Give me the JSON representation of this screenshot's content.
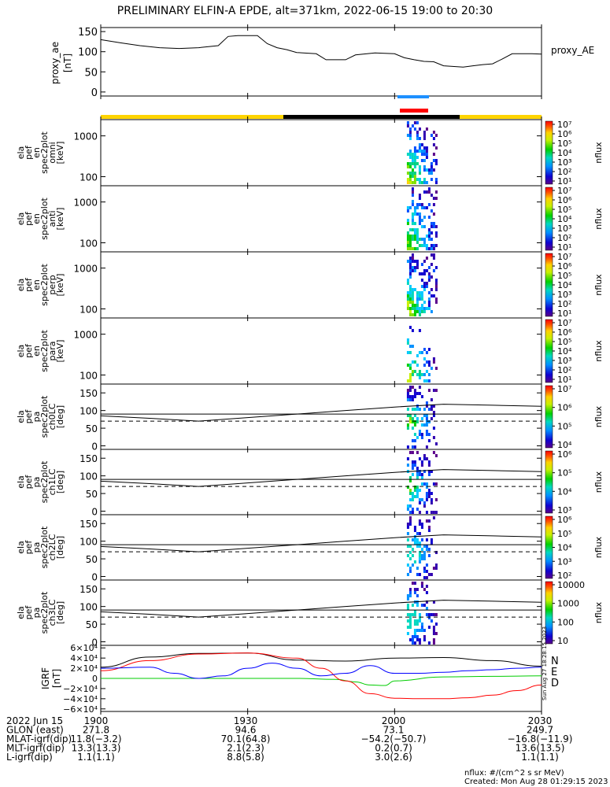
{
  "title": "PRELIMINARY ELFIN-A EPDE, alt=371km, 2022-06-15 19:00 to 20:30",
  "chart_data": [
    {
      "type": "line",
      "panel": "proxy_ae",
      "ylabel": [
        "proxy_ae",
        "[nT]"
      ],
      "legend": "proxy_AE",
      "ylim": [
        -10,
        160
      ],
      "yticks": [
        "150",
        "100",
        "50",
        "0"
      ],
      "x_minutes": [
        0,
        4,
        8,
        12,
        16,
        20,
        24,
        26,
        28,
        32,
        34,
        36,
        38,
        40,
        44,
        46,
        48,
        50,
        52,
        56,
        60,
        62,
        64,
        66,
        68,
        70,
        74,
        76,
        78,
        80,
        82,
        84,
        88,
        90
      ],
      "y": [
        130,
        122,
        115,
        110,
        108,
        110,
        115,
        138,
        140,
        140,
        120,
        110,
        105,
        98,
        95,
        80,
        80,
        80,
        92,
        97,
        95,
        85,
        80,
        76,
        75,
        65,
        62,
        65,
        68,
        70,
        82,
        95,
        95,
        94
      ]
    },
    {
      "type": "heatmap",
      "panel": "omni",
      "ylabel": [
        "ela",
        "pef",
        "en",
        "spec2plot",
        "omni",
        "[keV]"
      ],
      "yticks": [
        "1000",
        "100"
      ],
      "colorbar": {
        "label": "nflux",
        "ticks": [
          "10⁷",
          "10⁶",
          "10⁵",
          "10⁴",
          "10³",
          "10²",
          "10¹"
        ]
      }
    },
    {
      "type": "heatmap",
      "panel": "anti",
      "ylabel": [
        "ela",
        "pef",
        "en",
        "spec2plot",
        "anti",
        "[keV]"
      ],
      "yticks": [
        "1000",
        "100"
      ],
      "colorbar": {
        "label": "nflux",
        "ticks": [
          "10⁷",
          "10⁶",
          "10⁵",
          "10⁴",
          "10³",
          "10²",
          "10¹"
        ]
      }
    },
    {
      "type": "heatmap",
      "panel": "perp",
      "ylabel": [
        "ela",
        "pef",
        "en",
        "spec2plot",
        "perp",
        "[keV]"
      ],
      "yticks": [
        "1000",
        "100"
      ],
      "colorbar": {
        "label": "nflux",
        "ticks": [
          "10⁷",
          "10⁶",
          "10⁵",
          "10⁴",
          "10³",
          "10²",
          "10¹"
        ]
      }
    },
    {
      "type": "heatmap",
      "panel": "para",
      "ylabel": [
        "ela",
        "pef",
        "en",
        "spec2plot",
        "para",
        "[keV]"
      ],
      "yticks": [
        "1000",
        "100"
      ],
      "colorbar": {
        "label": "nflux",
        "ticks": [
          "10⁷",
          "10⁶",
          "10⁵",
          "10⁴",
          "10³",
          "10²",
          "10¹"
        ]
      }
    },
    {
      "type": "heatmap",
      "panel": "ch0LC",
      "ylabel": [
        "ela",
        "pef",
        "pa",
        "spec2plot",
        "ch0LC",
        "[deg]"
      ],
      "yticks": [
        "150",
        "100",
        "50",
        "0"
      ],
      "colorbar": {
        "label": "nflux",
        "ticks": [
          "10⁷",
          "10⁶",
          "10⁵",
          "10⁴"
        ]
      }
    },
    {
      "type": "heatmap",
      "panel": "ch1LC",
      "ylabel": [
        "ela",
        "pef",
        "pa",
        "spec2plot",
        "ch1LC",
        "[deg]"
      ],
      "yticks": [
        "150",
        "100",
        "50",
        "0"
      ],
      "colorbar": {
        "label": "nflux",
        "ticks": [
          "10⁶",
          "10⁵",
          "10⁴",
          "10³"
        ]
      }
    },
    {
      "type": "heatmap",
      "panel": "ch2LC",
      "ylabel": [
        "ela",
        "pef",
        "pa",
        "spec2plot",
        "ch2LC",
        "[deg]"
      ],
      "yticks": [
        "150",
        "100",
        "50",
        "0"
      ],
      "colorbar": {
        "label": "nflux",
        "ticks": [
          "10⁶",
          "10⁵",
          "10⁴",
          "10³",
          "10²"
        ]
      }
    },
    {
      "type": "heatmap",
      "panel": "ch3LC",
      "ylabel": [
        "ela",
        "pef",
        "pa",
        "spec2plot",
        "ch3LC",
        "[deg]"
      ],
      "yticks": [
        "150",
        "100",
        "50",
        "0"
      ],
      "colorbar": {
        "label": "nflux",
        "ticks": [
          "10000",
          "1000",
          "100",
          "10"
        ]
      }
    },
    {
      "type": "line",
      "panel": "IGRF",
      "ylabel": [
        "IGRF",
        "[nT]"
      ],
      "ylim": [
        -65000,
        65000
      ],
      "yticks": [
        "6×10⁴",
        "4×10⁴",
        "2×10⁴",
        "0",
        "−2×10⁴",
        "−4×10⁴",
        "−6×10⁴"
      ],
      "series": [
        {
          "name": "N",
          "color": "#000000",
          "x_minutes": [
            0,
            10,
            20,
            30,
            40,
            50,
            60,
            70,
            80,
            90
          ],
          "y": [
            22000,
            42000,
            49000,
            50000,
            36000,
            34000,
            40000,
            41000,
            35000,
            24000
          ]
        },
        {
          "name": "E",
          "color": "#00cc00",
          "x_minutes": [
            0,
            40,
            48,
            52,
            55,
            58,
            60,
            70,
            80,
            90
          ],
          "y": [
            0,
            0,
            -2000,
            -7000,
            -13000,
            -14000,
            -5000,
            3000,
            4000,
            5000
          ]
        },
        {
          "name": "D",
          "color": "#ff0000",
          "x_minutes": [
            0,
            10,
            20,
            30,
            40,
            45,
            50,
            55,
            60,
            65,
            70,
            75,
            80,
            85,
            90
          ],
          "y": [
            15000,
            35000,
            48000,
            50000,
            40000,
            20000,
            -5000,
            -30000,
            -39000,
            -40000,
            -40000,
            -38000,
            -33000,
            -24000,
            -13000
          ]
        },
        {
          "name": "",
          "color": "#0000ff",
          "x_minutes": [
            0,
            10,
            15,
            20,
            25,
            30,
            35,
            40,
            45,
            50,
            55,
            60,
            65,
            70,
            75,
            80,
            85,
            90
          ],
          "y": [
            20000,
            22000,
            10000,
            0,
            5000,
            20000,
            30000,
            20000,
            5000,
            10000,
            25000,
            10000,
            10000,
            12000,
            15000,
            17000,
            20000,
            22000
          ]
        }
      ]
    }
  ],
  "xaxis": {
    "ticks": [
      "1900",
      "1930",
      "2000",
      "2030"
    ],
    "rows": [
      {
        "label": "2022 Jun 15",
        "values": [
          "1900",
          "1930",
          "2000",
          "2030"
        ]
      },
      {
        "label": "GLON (east)",
        "values": [
          "271.8",
          "94.6",
          "73.1",
          "249.7"
        ]
      },
      {
        "label": "MLAT-igrf(dip)",
        "values": [
          "11.8(−3.2)",
          "70.1(64.8)",
          "−54.2(−50.7)",
          "−16.8(−11.9)"
        ]
      },
      {
        "label": "MLT-igrf(dip)",
        "values": [
          "13.3(13.3)",
          "2.1(2.3)",
          "0.2(0.7)",
          "13.6(13.5)"
        ]
      },
      {
        "label": "L-igrf(dip)",
        "values": [
          "1.1(1.1)",
          "8.8(5.8)",
          "3.0(2.6)",
          "1.1(1.1)"
        ]
      }
    ]
  },
  "igrf_labels": {
    "n": "N",
    "e": "E",
    "d": "D"
  },
  "side_stamp": "Sun Aug 27 18:28:15 2023",
  "footer": {
    "units": "nflux: #/(cm^2 s sr MeV)",
    "created": "Created: Mon Aug 28 01:29:15 2023"
  },
  "colors": {
    "sun_bar": "#ffd400",
    "shadow_bar": "#000000",
    "blue_bar": "#1e90ff",
    "red_bar": "#ff0000"
  }
}
